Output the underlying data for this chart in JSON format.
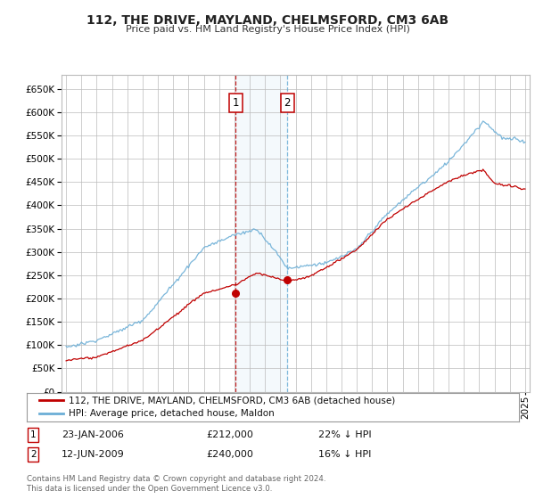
{
  "title": "112, THE DRIVE, MAYLAND, CHELMSFORD, CM3 6AB",
  "subtitle": "Price paid vs. HM Land Registry's House Price Index (HPI)",
  "ylim": [
    0,
    680000
  ],
  "yticks": [
    0,
    50000,
    100000,
    150000,
    200000,
    250000,
    300000,
    350000,
    400000,
    450000,
    500000,
    550000,
    600000,
    650000
  ],
  "legend_line1": "112, THE DRIVE, MAYLAND, CHELMSFORD, CM3 6AB (detached house)",
  "legend_line2": "HPI: Average price, detached house, Maldon",
  "footer": "Contains HM Land Registry data © Crown copyright and database right 2024.\nThis data is licensed under the Open Government Licence v3.0.",
  "sale1_date": "23-JAN-2006",
  "sale1_price": "£212,000",
  "sale1_hpi": "22% ↓ HPI",
  "sale1_x": 2006.07,
  "sale1_marker_y": 212000,
  "sale2_date": "12-JUN-2009",
  "sale2_price": "£240,000",
  "sale2_hpi": "16% ↓ HPI",
  "sale2_x": 2009.45,
  "sale2_marker_y": 240000,
  "hpi_color": "#6baed6",
  "price_color": "#c00000",
  "background_color": "#ffffff",
  "grid_color": "#bbbbbb",
  "highlight_color": "#d6e8f7",
  "xlim_start": 1994.7,
  "xlim_end": 2025.3
}
